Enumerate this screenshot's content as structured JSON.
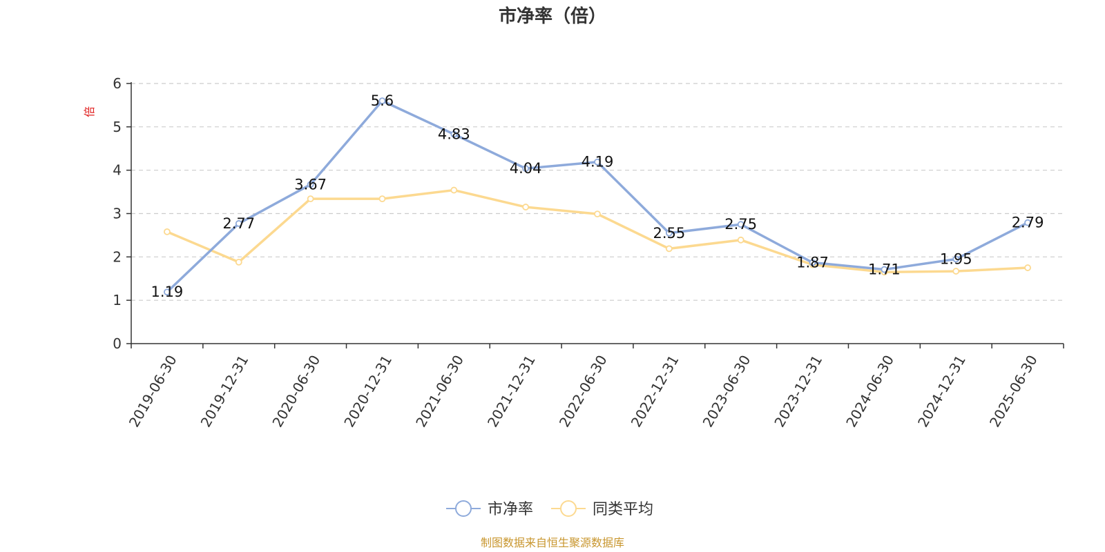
{
  "chart_data": {
    "type": "line",
    "title": "市净率（倍）",
    "ylabel": "倍",
    "ylim": [
      0,
      6
    ],
    "yticks": [
      0,
      1,
      2,
      3,
      4,
      5,
      6
    ],
    "grid": true,
    "legend_position": "bottom-center",
    "categories": [
      "2019-06-30",
      "2019-12-31",
      "2020-06-30",
      "2020-12-31",
      "2021-06-30",
      "2021-12-31",
      "2022-06-30",
      "2022-12-31",
      "2023-06-30",
      "2023-12-31",
      "2024-06-30",
      "2024-12-31",
      "2025-06-30"
    ],
    "series": [
      {
        "name": "市净率",
        "color": "#8eaadb",
        "values": [
          1.19,
          2.77,
          3.67,
          5.6,
          4.83,
          4.04,
          4.19,
          2.55,
          2.75,
          1.87,
          1.71,
          1.95,
          2.79
        ],
        "show_labels": true
      },
      {
        "name": "同类平均",
        "color": "#fcd990",
        "values": [
          2.58,
          1.88,
          3.34,
          3.34,
          3.54,
          3.15,
          2.99,
          2.19,
          2.39,
          1.82,
          1.65,
          1.67,
          1.75
        ],
        "show_labels": false
      }
    ]
  },
  "ylabel_color": "#e02020",
  "source_text": "制图数据来自恒生聚源数据库",
  "source_color": "#c8962e"
}
